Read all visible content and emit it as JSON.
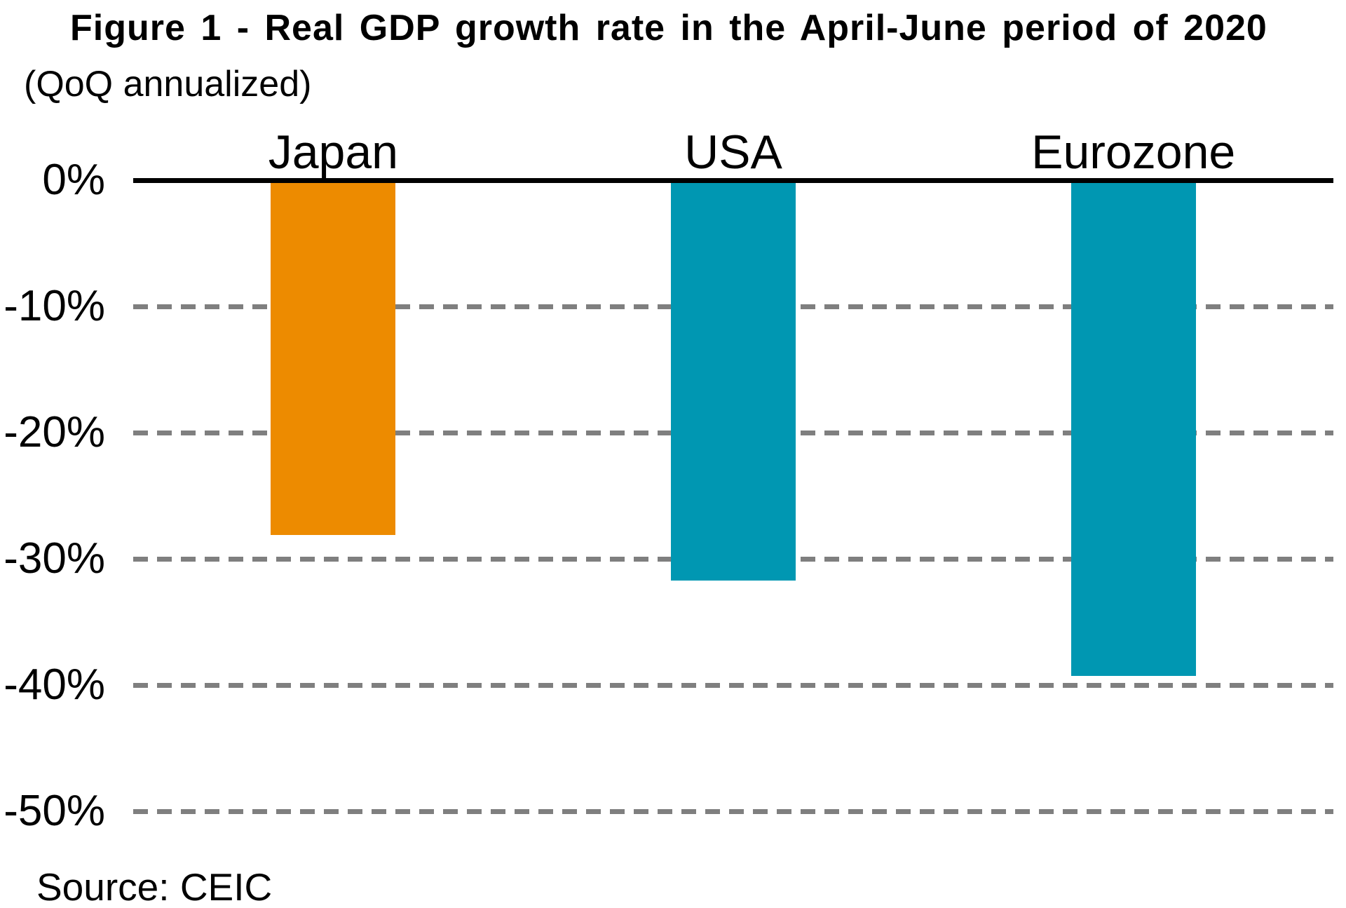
{
  "figure": {
    "title": "Figure 1 - Real GDP growth rate in the April-June period of 2020",
    "subtitle": "(QoQ annualized)",
    "source": "Source: CEIC"
  },
  "chart_data": {
    "type": "bar",
    "title": "Figure 1 - Real GDP growth rate in the April-June period of 2020",
    "subtitle": "(QoQ annualized)",
    "source": "Source: CEIC",
    "categories": [
      "Japan",
      "USA",
      "Eurozone"
    ],
    "values": [
      -28.1,
      -31.7,
      -39.3
    ],
    "unit": "% (QoQ annualized growth rate)",
    "bar_colors": [
      "#ED8B00",
      "#0097B2",
      "#0097B2"
    ],
    "xlabel": "",
    "ylabel": "",
    "y_ticks": [
      "0%",
      "-10%",
      "-20%",
      "-30%",
      "-40%",
      "-50%"
    ],
    "y_tick_values": [
      0,
      -10,
      -20,
      -30,
      -40,
      -50
    ],
    "ylim": [
      0,
      -50
    ],
    "grid": "horizontal dashed gridlines at each 10% tick",
    "legend": "none",
    "category_label_position": "above zero axis",
    "axis_color": "#000000",
    "gridline_color": "#7F7F7F",
    "background_color": "#FFFFFF"
  }
}
